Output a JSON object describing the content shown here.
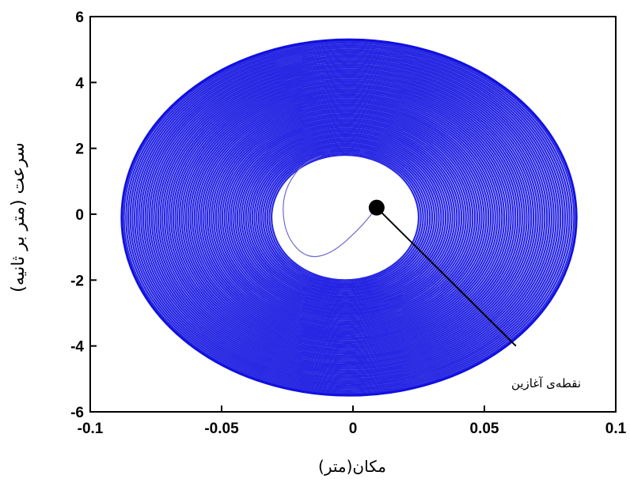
{
  "chart_data": {
    "type": "line",
    "title": "",
    "xlabel": "مکان(متر)",
    "ylabel": "سرعت (متر بر ثانیه)",
    "xlim": [
      -0.1,
      0.1
    ],
    "ylim": [
      -6,
      6
    ],
    "x_ticks": [
      "-0.1",
      "-0.05",
      "0",
      "0.05",
      "0.1"
    ],
    "y_ticks": [
      "6",
      "4",
      "2",
      "0",
      "-2",
      "-4",
      "-6"
    ],
    "grid": false,
    "series_color": "#1010e0",
    "phase_portrait": {
      "outer_boundary": {
        "x_min": -0.088,
        "x_max": 0.085,
        "v_min": -5.5,
        "v_max": 5.3
      },
      "inner_boundary": {
        "x_min": -0.031,
        "x_max": 0.025,
        "v_min": -2.0,
        "v_max": 1.8
      },
      "initial_spiral": [
        {
          "x": 0.009,
          "v": 0.2
        },
        {
          "x": 0.003,
          "v": -0.4
        },
        {
          "x": -0.008,
          "v": -1.2
        },
        {
          "x": -0.018,
          "v": -1.35
        },
        {
          "x": -0.026,
          "v": -0.6
        },
        {
          "x": -0.027,
          "v": 0.6
        },
        {
          "x": -0.02,
          "v": 1.5
        },
        {
          "x": -0.012,
          "v": 1.78
        }
      ]
    },
    "start_point": {
      "x": 0.009,
      "v": 0.2
    },
    "annotation": {
      "text": "نقطه‌ی آغازین",
      "pointer_end": {
        "x": 0.062,
        "v": -4.0
      }
    }
  }
}
